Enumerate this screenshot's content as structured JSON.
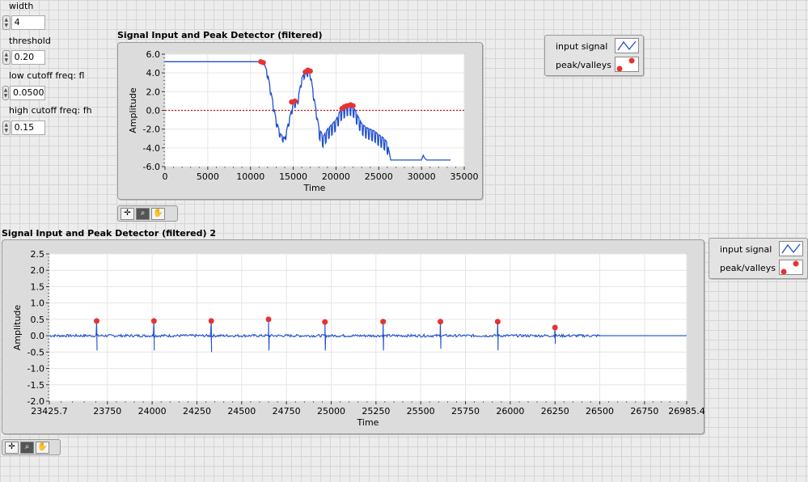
{
  "controls": [
    {
      "label": "width",
      "value": "4"
    },
    {
      "label": "threshold",
      "value": "0.20"
    },
    {
      "label": "low cutoff freq: fl",
      "value": "0.0500"
    },
    {
      "label": "high cutoff freq: fh",
      "value": "0.15"
    }
  ],
  "graph1": {
    "title": "Signal Input and Peak Detector (filtered)",
    "legend": {
      "signal": "input signal",
      "peaks": "peak/valleys"
    }
  },
  "graph2": {
    "title": "Signal Input and Peak Detector (filtered) 2",
    "legend": {
      "signal": "input signal",
      "peaks": "peak/valleys"
    }
  },
  "palette_tools": [
    "cursor-move-tool",
    "zoom-tool",
    "pan-hand-tool"
  ],
  "colors": {
    "signal": "#1f4fd0",
    "markers": "#e83232",
    "threshold": "#d01010",
    "plot_bg": "#ffffff",
    "panel_bg": "#dcdcdc"
  },
  "chart_data": [
    {
      "type": "line",
      "title": "Signal Input and Peak Detector (filtered)",
      "xlabel": "Time",
      "ylabel": "Amplitude",
      "xlim": [
        0,
        35000
      ],
      "ylim": [
        -6.0,
        6.0
      ],
      "xticks": [
        "0",
        "5000",
        "10000",
        "15000",
        "20000",
        "25000",
        "30000",
        "35000"
      ],
      "yticks": [
        "6.0",
        "4.0",
        "2.0",
        "0.0",
        "-2.0",
        "-4.0",
        "-6.0"
      ],
      "threshold_line": 0.0,
      "series": [
        {
          "name": "input signal",
          "x": [
            0,
            11200,
            11600,
            12000,
            12500,
            13000,
            13500,
            14000,
            14500,
            15000,
            15500,
            16000,
            16500,
            17000,
            17500,
            18000,
            18500,
            19000,
            19500,
            20000,
            20500,
            21000,
            21500,
            22000,
            22500,
            23000,
            23500,
            24000,
            24500,
            25000,
            25500,
            26000,
            26400,
            27000,
            28000,
            30000,
            30200,
            30500,
            31000,
            33500
          ],
          "y": [
            5.2,
            5.2,
            5.0,
            4.0,
            1.5,
            -1.0,
            -2.5,
            -3.0,
            -1.0,
            0.8,
            1.0,
            3.5,
            4.3,
            4.0,
            1.0,
            -1.8,
            -2.8,
            -2.0,
            -1.5,
            -1.0,
            0.0,
            0.4,
            0.7,
            0.5,
            -0.5,
            -1.4,
            -1.8,
            -2.0,
            -2.2,
            -2.6,
            -2.9,
            -3.4,
            -5.3,
            -5.3,
            -5.3,
            -5.3,
            -4.8,
            -5.3,
            -5.3,
            -5.3
          ]
        },
        {
          "name": "peak/valleys",
          "x": [
            11200,
            11500,
            14800,
            15200,
            16400,
            16700,
            17000,
            20700,
            21000,
            21300,
            21700,
            22000
          ],
          "y": [
            5.2,
            5.1,
            0.9,
            1.0,
            4.1,
            4.3,
            4.2,
            0.2,
            0.4,
            0.5,
            0.6,
            0.5
          ]
        }
      ]
    },
    {
      "type": "line",
      "title": "Signal Input and Peak Detector (filtered) 2",
      "xlabel": "Time",
      "ylabel": "Amplitude",
      "xlim": [
        23425.7,
        26985.4
      ],
      "ylim": [
        -2.0,
        2.5
      ],
      "xticks": [
        "23425.7",
        "23750",
        "24000",
        "24250",
        "24500",
        "24750",
        "25000",
        "25250",
        "25500",
        "25750",
        "26000",
        "26250",
        "26500",
        "26750",
        "26985.4"
      ],
      "yticks": [
        "2.5",
        "2.0",
        "1.5",
        "1.0",
        "0.5",
        "0.0",
        "-0.5",
        "-1.0",
        "-1.5",
        "-2.0"
      ],
      "series": [
        {
          "name": "input signal",
          "spike_x": [
            23690,
            24010,
            24330,
            24650,
            24965,
            25290,
            25610,
            25930,
            26250
          ],
          "spike_up": [
            0.45,
            0.45,
            0.45,
            0.5,
            0.45,
            0.45,
            0.45,
            0.45,
            0.25
          ],
          "spike_down": [
            -0.45,
            -0.45,
            -0.5,
            -0.45,
            -0.45,
            -0.45,
            -0.4,
            -0.45,
            -0.25
          ],
          "noise_end": 26500,
          "baseline": 0.0
        },
        {
          "name": "peak/valleys",
          "x": [
            23690,
            24010,
            24330,
            24650,
            24965,
            25290,
            25610,
            25930,
            26250
          ],
          "y": [
            0.45,
            0.45,
            0.45,
            0.5,
            0.42,
            0.43,
            0.43,
            0.43,
            0.25
          ]
        }
      ]
    }
  ]
}
